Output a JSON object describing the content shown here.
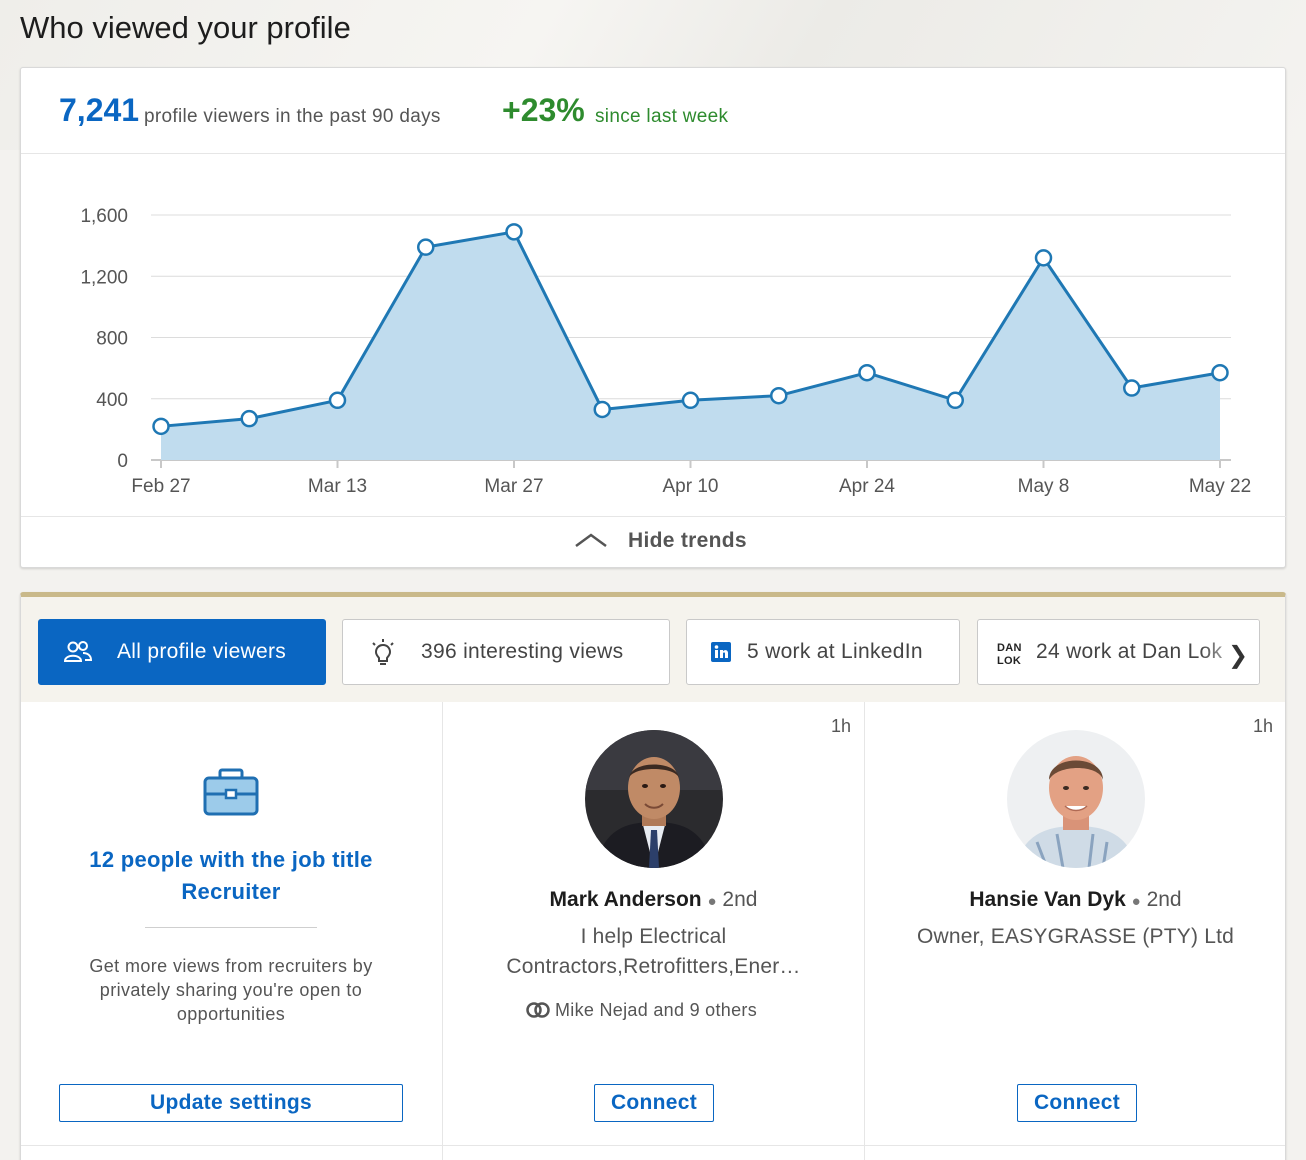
{
  "page": {
    "title": "Who viewed your profile"
  },
  "summary": {
    "viewer_count": "7,241",
    "viewer_count_label": "profile viewers in the past 90 days",
    "change": "+23%",
    "change_label": "since last week",
    "hide_trends_label": "Hide trends"
  },
  "chart_data": {
    "type": "area",
    "x": [
      "Feb 27",
      "Mar 6",
      "Mar 13",
      "Mar 20",
      "Mar 27",
      "Apr 3",
      "Apr 10",
      "Apr 17",
      "Apr 24",
      "May 1",
      "May 8",
      "May 15",
      "May 22"
    ],
    "values": [
      220,
      270,
      390,
      1390,
      1490,
      330,
      390,
      420,
      570,
      390,
      1320,
      470,
      570
    ],
    "x_tick_labels": [
      "Feb 27",
      "Mar 13",
      "Mar 27",
      "Apr 10",
      "Apr 24",
      "May 8",
      "May 22"
    ],
    "y_ticks": [
      0,
      400,
      800,
      1200,
      1600
    ],
    "y_tick_labels": [
      "0",
      "400",
      "800",
      "1,200",
      "1,600"
    ],
    "ylim": [
      0,
      1600
    ],
    "grid": true,
    "title": "",
    "xlabel": "",
    "ylabel": "",
    "colors": {
      "line": "#1f78b4",
      "fill": "#c0dcee"
    }
  },
  "filters": [
    {
      "label": "All profile viewers",
      "icon": "people-icon",
      "active": true
    },
    {
      "label": "396 interesting views",
      "icon": "lightbulb-icon",
      "active": false
    },
    {
      "label": "5 work at LinkedIn",
      "icon": "linkedin-icon",
      "active": false
    },
    {
      "label": "24 work at Dan Lok",
      "icon": "danlok-logo-icon",
      "active": false
    }
  ],
  "recruiter_card": {
    "title_line1": "12 people with the job title",
    "title_line2": "Recruiter",
    "description": "Get more views from recruiters by privately sharing you're open to opportunities",
    "button": "Update settings"
  },
  "viewers": [
    {
      "time": "1h",
      "name": "Mark Anderson",
      "degree": "2nd",
      "headline_line1": "I help Electrical",
      "headline_line2": "Contractors,Retrofitters,Ener…",
      "shared": "Mike Nejad and 9 others",
      "button": "Connect"
    },
    {
      "time": "1h",
      "name": "Hansie Van Dyk",
      "degree": "2nd",
      "headline_line1": "Owner, EASYGRASSE (PTY) Ltd",
      "button": "Connect"
    }
  ],
  "colors": {
    "accent": "#0a66c2",
    "positive": "#2e8b2e",
    "gold_bar": "#c9b98a"
  }
}
